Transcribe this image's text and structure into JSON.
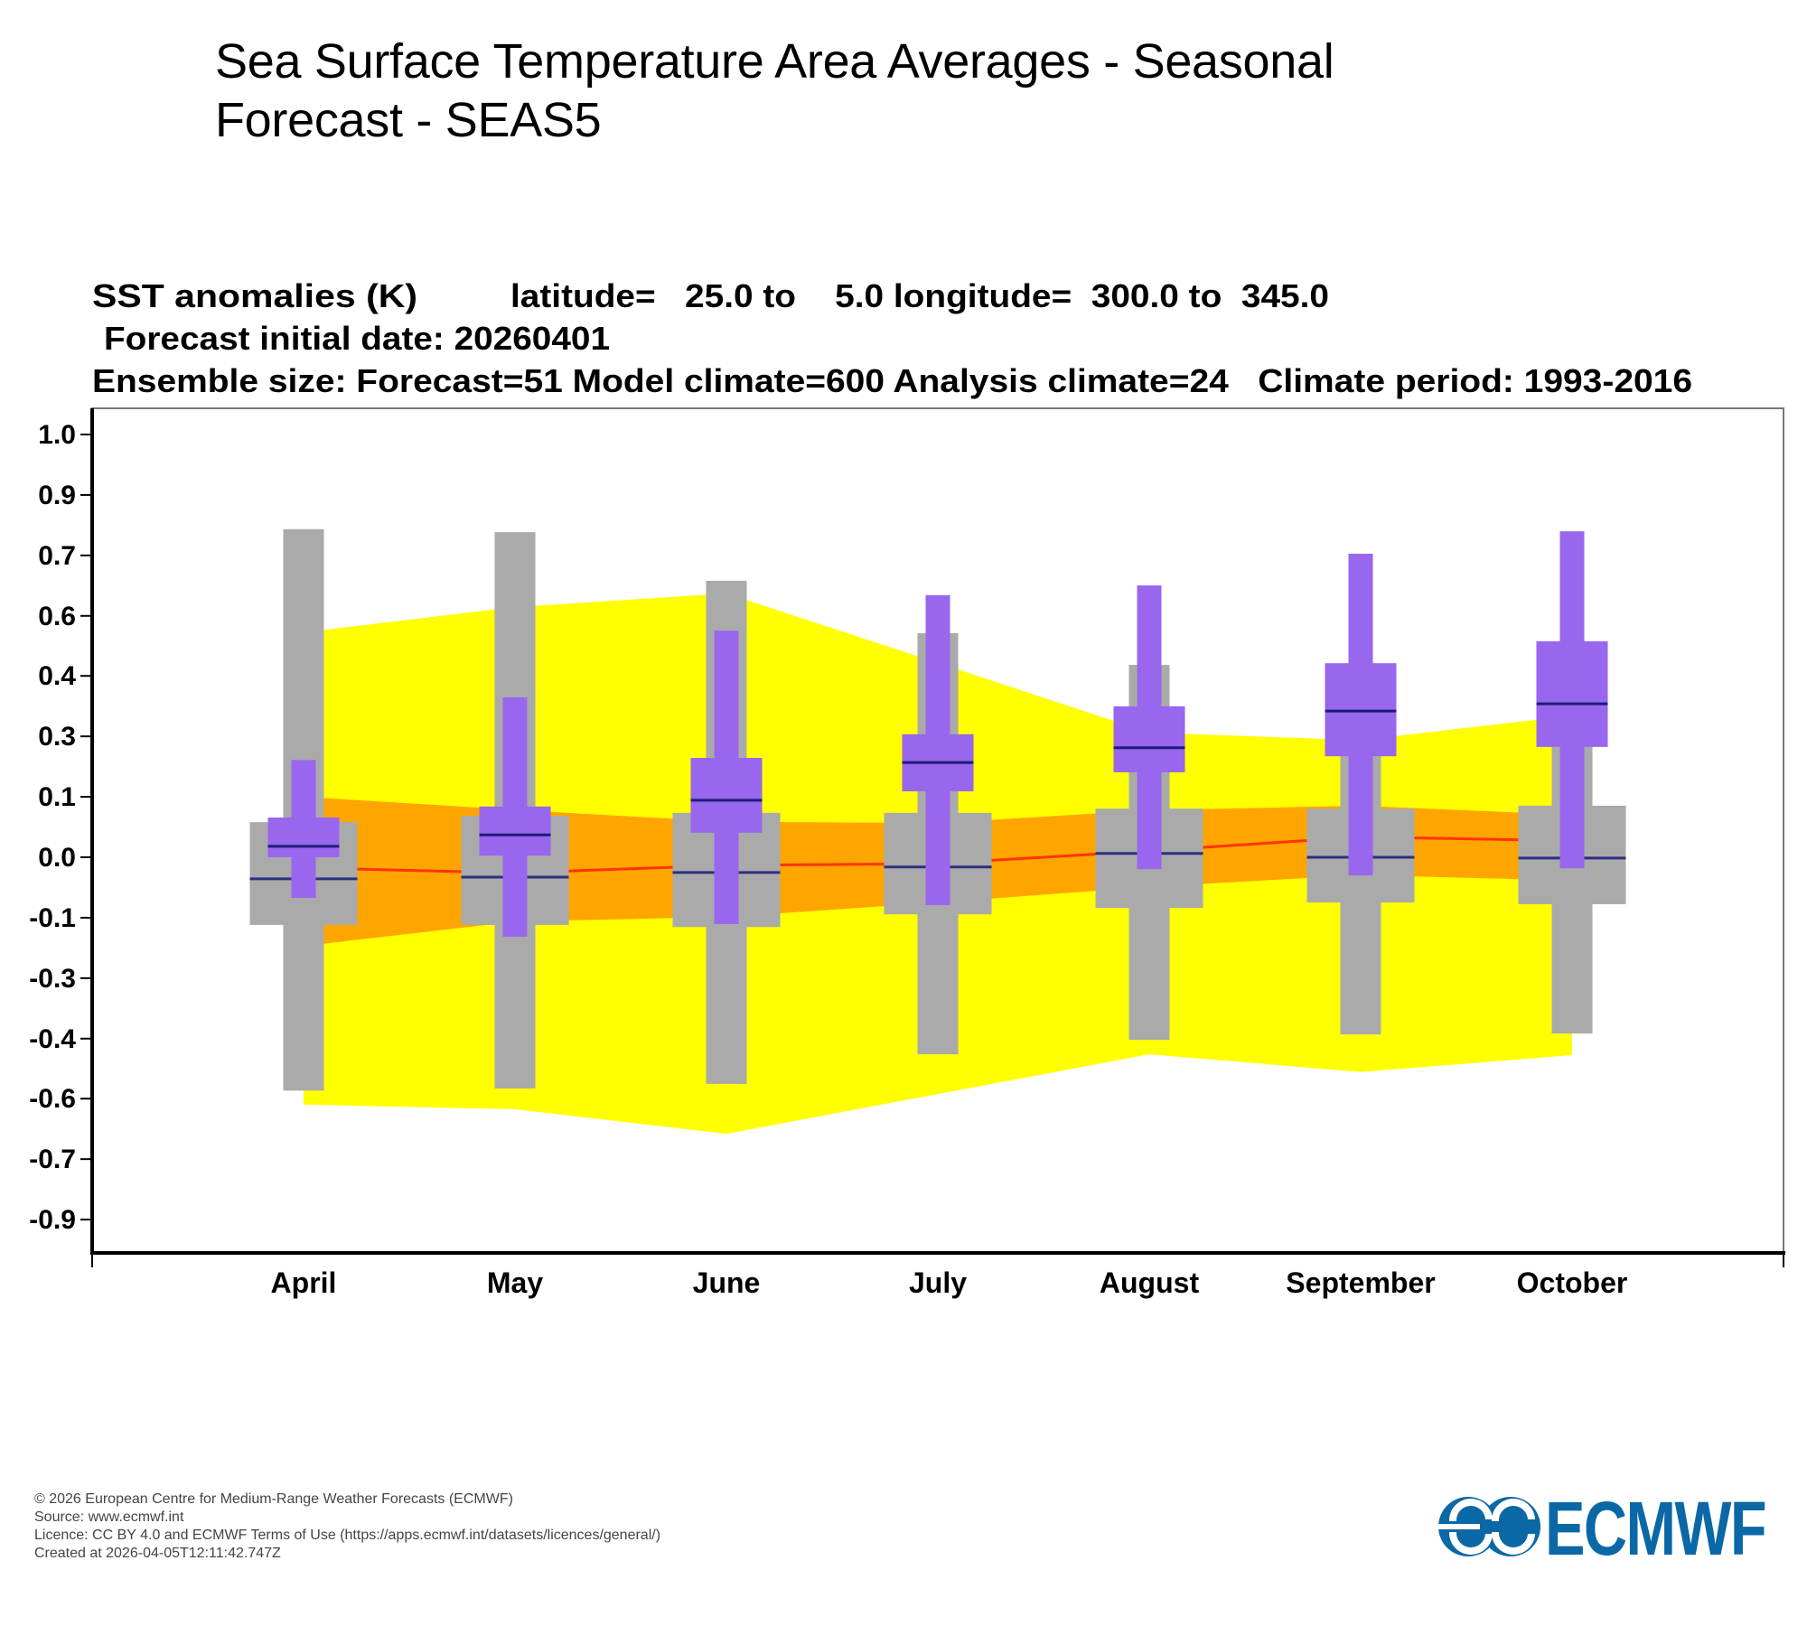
{
  "page": {
    "title_line1": "Sea Surface Temperature Area Averages - Seasonal",
    "title_line2": "Forecast - SEAS5"
  },
  "header": {
    "line1_variable": "SST anomalies (K)",
    "line1_region": "latitude=   25.0 to    5.0 longitude=  300.0 to  345.0",
    "line2": "Forecast initial date: 20260401",
    "line3": "Ensemble size: Forecast=51 Model climate=600 Analysis climate=24   Climate period: 1993-2016"
  },
  "chart_data": {
    "type": "box",
    "title": "SST anomalies (K)",
    "subtitle": "latitude= 25.0 to 5.0 longitude= 300.0 to 345.0; Forecast initial date: 20260401",
    "xlabel": "",
    "ylabel": "SST anomalies (K)",
    "categories": [
      "April",
      "May",
      "June",
      "July",
      "August",
      "September",
      "October"
    ],
    "xlim": [
      0,
      8
    ],
    "ylim": [
      -0.936,
      1.062
    ],
    "yticks": [
      -0.857,
      -0.714,
      -0.571,
      -0.429,
      -0.286,
      -0.143,
      0.0,
      0.143,
      0.286,
      0.429,
      0.571,
      0.714,
      0.857,
      1.0
    ],
    "ytick_labels": [
      "-0.9",
      "-0.7",
      "-0.6",
      "-0.4",
      "-0.3",
      "-0.1",
      "0.0",
      "0.1",
      "0.3",
      "0.4",
      "0.6",
      "0.7",
      "0.9",
      "1.0"
    ],
    "grid": false,
    "legend": "none",
    "colors": {
      "yellow_band": "#ffff00",
      "orange_band": "#ffa500",
      "red_line": "#ff3300",
      "model_climate_box": "#aaaaaa",
      "forecast_box": "#9966ee",
      "median_line": "#1c1c78"
    },
    "series": [
      {
        "name": "Model climate (grey)",
        "whisker_low": [
          -0.552,
          -0.547,
          -0.536,
          -0.466,
          -0.432,
          -0.419,
          -0.417
        ],
        "box_low": [
          -0.16,
          -0.16,
          -0.165,
          -0.135,
          -0.12,
          -0.107,
          -0.111
        ],
        "median": [
          -0.051,
          -0.047,
          -0.036,
          -0.023,
          0.009,
          0.0,
          -0.002
        ],
        "box_high": [
          0.083,
          0.098,
          0.105,
          0.105,
          0.115,
          0.115,
          0.122
        ],
        "whisker_high": [
          0.776,
          0.769,
          0.654,
          0.53,
          0.455,
          0.4,
          0.4
        ]
      },
      {
        "name": "Forecast (purple)",
        "whisker_low": [
          -0.096,
          -0.188,
          -0.158,
          -0.113,
          -0.028,
          -0.043,
          -0.026
        ],
        "box_low": [
          0.0,
          0.004,
          0.058,
          0.156,
          0.201,
          0.239,
          0.261
        ],
        "median": [
          0.026,
          0.053,
          0.135,
          0.224,
          0.259,
          0.346,
          0.363
        ],
        "box_high": [
          0.094,
          0.12,
          0.235,
          0.291,
          0.357,
          0.459,
          0.511
        ],
        "whisker_high": [
          0.23,
          0.378,
          0.536,
          0.62,
          0.643,
          0.718,
          0.771
        ]
      },
      {
        "name": "Analysis climate outer range (yellow)",
        "low": [
          -0.585,
          -0.596,
          -0.654,
          -0.56,
          -0.466,
          -0.508,
          -0.468
        ],
        "high": [
          0.532,
          0.592,
          0.624,
          0.46,
          0.295,
          0.277,
          0.335
        ]
      },
      {
        "name": "Analysis climate inner range (orange)",
        "low": [
          -0.21,
          -0.152,
          -0.141,
          -0.107,
          -0.07,
          -0.042,
          -0.055
        ],
        "high": [
          0.143,
          0.112,
          0.084,
          0.081,
          0.111,
          0.122,
          0.1
        ]
      },
      {
        "name": "Analysis climate median (red line)",
        "values": [
          -0.025,
          -0.037,
          -0.019,
          -0.015,
          0.015,
          0.048,
          0.039
        ]
      }
    ]
  },
  "footer": {
    "copyright": "© 2026 European Centre for Medium-Range Weather Forecasts (ECMWF)",
    "source": "Source: www.ecmwf.int",
    "licence": "Licence: CC BY 4.0 and ECMWF Terms of Use (https://apps.ecmwf.int/datasets/licences/general/)",
    "created": "Created at 2026-04-05T12:11:42.747Z"
  },
  "logo": {
    "text": "ECMWF",
    "icon": "ecmwf-logo-icon",
    "color": "#0a68a6"
  }
}
